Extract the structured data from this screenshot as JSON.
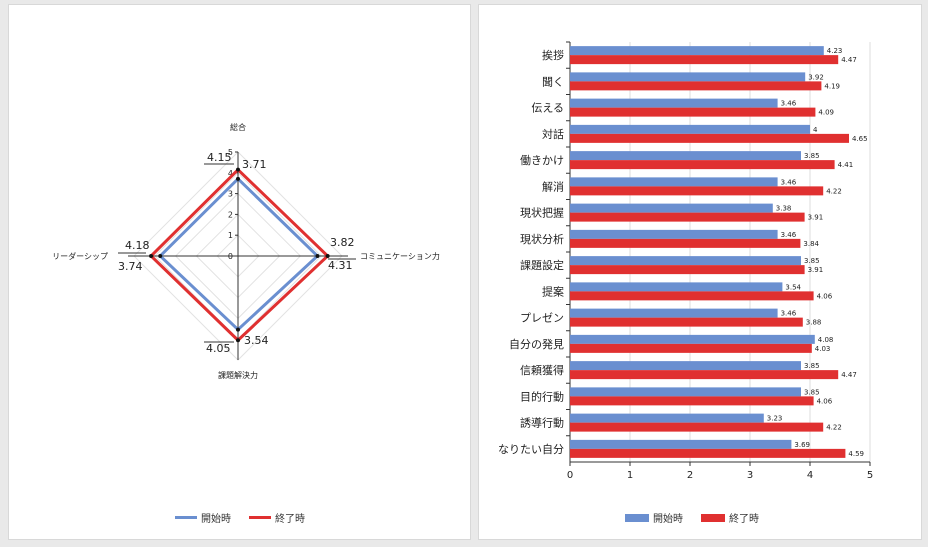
{
  "colors": {
    "start": "#6a8fd0",
    "end": "#e03030"
  },
  "radar": {
    "type": "radar",
    "axes": [
      "総合",
      "コミュニケーション力",
      "課題解決力",
      "リーダーシップ"
    ],
    "axis_max": 5,
    "ticks": [
      "5",
      "4",
      "3",
      "2",
      "1",
      "0"
    ],
    "series": [
      {
        "name": "開始時",
        "values": [
          3.71,
          3.82,
          3.54,
          3.74
        ],
        "labels": [
          "3.71",
          "3.82",
          "3.54",
          "3.74"
        ]
      },
      {
        "name": "終了時",
        "values": [
          4.15,
          4.31,
          4.05,
          4.18
        ],
        "labels": [
          "4.15",
          "4.31",
          "4.05",
          "4.18"
        ]
      }
    ]
  },
  "chart_data": {
    "type": "bar",
    "orientation": "horizontal",
    "categories": [
      "挨拶",
      "聞く",
      "伝える",
      "対話",
      "働きかけ",
      "解消",
      "現状把握",
      "現状分析",
      "課題設定",
      "提案",
      "プレゼン",
      "自分の発見",
      "信頼獲得",
      "目的行動",
      "誘導行動",
      "なりたい自分"
    ],
    "series": [
      {
        "name": "開始時",
        "values": [
          4.23,
          3.92,
          3.46,
          4,
          3.85,
          3.46,
          3.38,
          3.46,
          3.85,
          3.54,
          3.46,
          4.08,
          3.85,
          3.85,
          3.23,
          3.69
        ],
        "labels": [
          "4.23",
          "3.92",
          "3.46",
          "4",
          "3.85",
          "3.46",
          "3.38",
          "3.46",
          "3.85",
          "3.54",
          "3.46",
          "4.08",
          "3.85",
          "3.85",
          "3.23",
          "3.69"
        ]
      },
      {
        "name": "終了時",
        "values": [
          4.47,
          4.19,
          4.09,
          4.65,
          4.41,
          4.22,
          3.91,
          3.84,
          3.91,
          4.06,
          3.88,
          4.03,
          4.47,
          4.06,
          4.22,
          4.59
        ],
        "labels": [
          "4.47",
          "4.19",
          "4.09",
          "4.65",
          "4.41",
          "4.22",
          "3.91",
          "3.84",
          "3.91",
          "4.06",
          "3.88",
          "4.03",
          "4.47",
          "4.06",
          "4.22",
          "4.59"
        ]
      }
    ],
    "xlim": [
      0,
      5
    ],
    "x_ticks": [
      "0",
      "1",
      "2",
      "3",
      "4",
      "5"
    ],
    "grid": true,
    "legend": "bottom"
  }
}
